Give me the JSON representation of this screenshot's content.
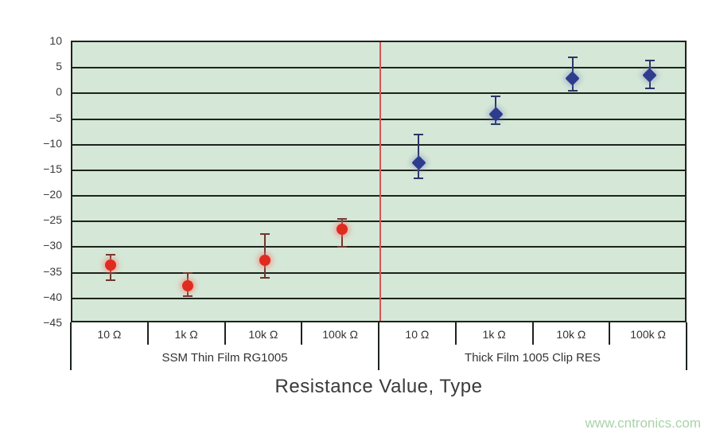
{
  "watermark": "www.cntronics.com",
  "chart_data": {
    "type": "scatter",
    "title": "",
    "xlabel": "Resistance Value, Type",
    "ylabel": "",
    "ylim": [
      -45,
      10
    ],
    "ytick_step": 5,
    "yticks": [
      10,
      5,
      0,
      -5,
      -10,
      -15,
      -20,
      -25,
      -30,
      -35,
      -40,
      -45
    ],
    "grid": true,
    "legend_position": "none",
    "plot_bg_color": "#d5e7d6",
    "gridline_color": "#1d231d",
    "divider_color": "#d95454",
    "groups": [
      {
        "label": "SSM Thin Film RG1005",
        "categories": [
          "10 Ω",
          "1k Ω",
          "10k Ω",
          "100k Ω"
        ]
      },
      {
        "label": "Thick Film 1005 Clip RES",
        "categories": [
          "10 Ω",
          "1k Ω",
          "10k Ω",
          "100k Ω"
        ]
      }
    ],
    "series": [
      {
        "name": "SSM Thin Film RG1005",
        "marker": "circle",
        "color": "#e02b20",
        "glow_color": "rgba(244,130,120,0.55)",
        "error_color": "#6e362e",
        "group": 0,
        "values": [
          -33.5,
          -37.5,
          -32.5,
          -26.5
        ],
        "err_hi": [
          -31.5,
          -35,
          -27.5,
          -24.5
        ],
        "err_lo": [
          -36.5,
          -39.5,
          -36,
          -30
        ]
      },
      {
        "name": "Thick Film 1005 Clip RES",
        "marker": "diamond",
        "color": "#2e3c8e",
        "glow_color": "rgba(110,125,190,0.35)",
        "error_color": "#2c3566",
        "group": 1,
        "values": [
          -13.5,
          -4,
          3,
          3.5
        ],
        "err_hi": [
          -8,
          -0.5,
          7,
          6.5
        ],
        "err_lo": [
          -16.5,
          -6,
          0.5,
          1
        ]
      }
    ]
  }
}
